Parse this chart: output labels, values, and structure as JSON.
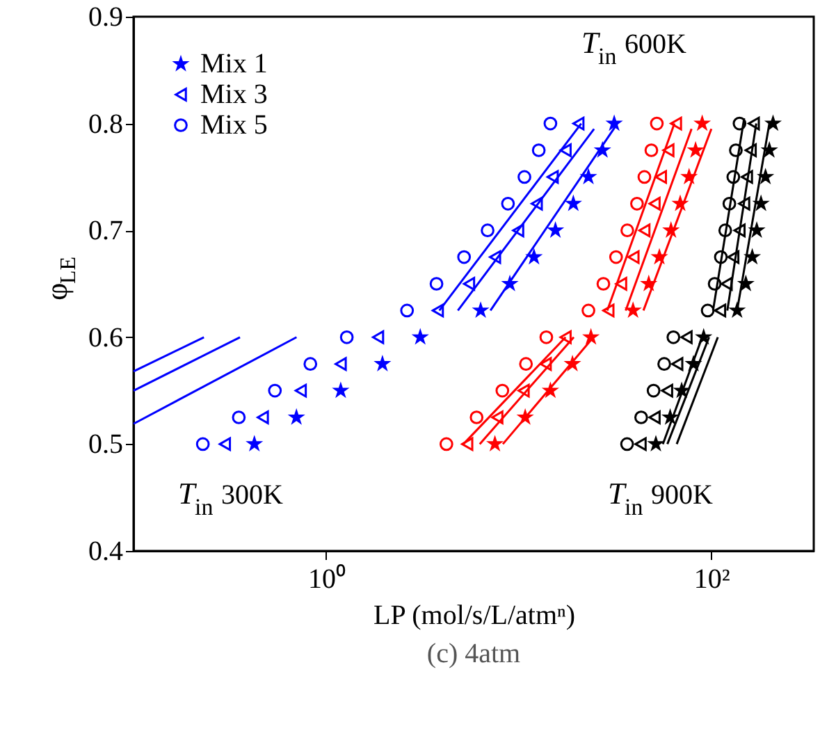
{
  "chart_data": {
    "type": "scatter",
    "title": "(c) 4atm",
    "xlabel": "LP (mol/s/L/atmⁿ)",
    "ylabel": "φ$_{LE}$",
    "xlim": [
      0.1,
      340
    ],
    "ylim": [
      0.4,
      0.9
    ],
    "xticks": [
      {
        "value": 1,
        "label": "10⁰"
      },
      {
        "value": 100,
        "label": "10²"
      }
    ],
    "yticks": [
      0.4,
      0.5,
      0.6,
      0.7,
      0.8,
      0.9
    ],
    "log": "x",
    "grid": false,
    "legend": "top left",
    "annotations": [
      "T$_{in}$ 600K",
      "T$_{in}$ 300K",
      "T$_{in}$ 900K"
    ],
    "series": [
      {
        "name": "Mix 1",
        "marker": "star",
        "color": "#0000ff",
        "x": [
          0.424,
          0.701,
          1.19,
          1.96,
          3.08,
          6.34,
          8.99,
          12.0,
          15.5,
          19.2,
          23.0,
          27.2,
          31.3
        ],
        "values": [
          0.5,
          0.525,
          0.55,
          0.575,
          0.6,
          0.625,
          0.65,
          0.675,
          0.7,
          0.725,
          0.75,
          0.775,
          0.8
        ]
      },
      {
        "name": "Mix 3",
        "marker": "triangle",
        "color": "#0000ff",
        "x": [
          0.298,
          0.469,
          0.738,
          1.19,
          1.86,
          3.8,
          5.52,
          7.53,
          9.93,
          12.4,
          15.0,
          17.5,
          20.4
        ],
        "values": [
          0.5,
          0.525,
          0.55,
          0.575,
          0.6,
          0.625,
          0.65,
          0.675,
          0.7,
          0.725,
          0.75,
          0.775,
          0.8
        ]
      },
      {
        "name": "Mix 5",
        "marker": "circle",
        "color": "#0000ff",
        "x": [
          0.229,
          0.352,
          0.542,
          0.828,
          1.28,
          2.63,
          3.74,
          5.2,
          6.89,
          8.79,
          10.7,
          12.7,
          14.6
        ],
        "values": [
          0.5,
          0.525,
          0.55,
          0.575,
          0.6,
          0.625,
          0.65,
          0.675,
          0.7,
          0.725,
          0.75,
          0.775,
          0.8
        ]
      },
      {
        "type": "scatter",
        "marker": "star",
        "color": "#ff0000",
        "x": [
          7.52,
          10.8,
          14.6,
          19.0,
          23.7,
          39.2,
          47.3,
          53.7,
          61.7,
          68.9,
          76.6,
          82.8,
          89.6
        ],
        "values": [
          0.5,
          0.525,
          0.55,
          0.575,
          0.6,
          0.625,
          0.65,
          0.675,
          0.7,
          0.725,
          0.75,
          0.775,
          0.8
        ]
      },
      {
        "type": "scatter",
        "marker": "triangle",
        "color": "#ff0000",
        "x": [
          5.4,
          7.74,
          10.6,
          13.8,
          17.5,
          29.2,
          34.0,
          39.4,
          44.9,
          50.7,
          54.7,
          59.8,
          65.5
        ],
        "values": [
          0.5,
          0.525,
          0.55,
          0.575,
          0.6,
          0.625,
          0.65,
          0.675,
          0.7,
          0.725,
          0.75,
          0.775,
          0.8
        ]
      },
      {
        "type": "scatter",
        "marker": "circle",
        "color": "#ff0000",
        "x": [
          4.21,
          6.04,
          8.22,
          10.9,
          13.9,
          23.0,
          27.5,
          32.0,
          36.6,
          41.1,
          44.9,
          48.8,
          52.1
        ],
        "values": [
          0.5,
          0.525,
          0.55,
          0.575,
          0.6,
          0.625,
          0.65,
          0.675,
          0.7,
          0.725,
          0.75,
          0.775,
          0.8
        ]
      },
      {
        "type": "scatter",
        "marker": "star",
        "color": "#000000",
        "x": [
          51.5,
          61.1,
          70.1,
          80.7,
          91.2,
          136,
          151,
          163,
          172,
          181,
          191,
          200,
          209
        ],
        "values": [
          0.5,
          0.525,
          0.55,
          0.575,
          0.6,
          0.625,
          0.65,
          0.675,
          0.7,
          0.725,
          0.75,
          0.775,
          0.8
        ]
      },
      {
        "type": "scatter",
        "marker": "triangle",
        "color": "#000000",
        "x": [
          42.9,
          50.7,
          58.9,
          66.5,
          74.3,
          111,
          120,
          130,
          140,
          148,
          153,
          160,
          166
        ],
        "values": [
          0.5,
          0.525,
          0.55,
          0.575,
          0.6,
          0.625,
          0.65,
          0.675,
          0.7,
          0.725,
          0.75,
          0.775,
          0.8
        ]
      },
      {
        "type": "scatter",
        "marker": "circle",
        "color": "#000000",
        "x": [
          36.5,
          43.2,
          50.1,
          56.9,
          63.5,
          95.7,
          104,
          112,
          118,
          124,
          130,
          134,
          140
        ],
        "values": [
          0.5,
          0.525,
          0.55,
          0.575,
          0.6,
          0.625,
          0.65,
          0.675,
          0.7,
          0.725,
          0.75,
          0.775,
          0.8
        ]
      },
      {
        "type": "line",
        "color": "#0000ff",
        "x": [
          0.1,
          0.232
        ],
        "values": [
          0.568,
          0.6
        ]
      },
      {
        "type": "line",
        "color": "#0000ff",
        "x": [
          0.1,
          0.357
        ],
        "values": [
          0.55,
          0.6
        ]
      },
      {
        "type": "line",
        "color": "#0000ff",
        "x": [
          0.1,
          0.702
        ],
        "values": [
          0.519,
          0.6
        ]
      },
      {
        "type": "line",
        "color": "#0000ff",
        "x": [
          3.87,
          21.1
        ],
        "values": [
          0.625,
          0.8
        ]
      },
      {
        "type": "line",
        "color": "#0000ff",
        "x": [
          4.83,
          24.6
        ],
        "values": [
          0.625,
          0.795
        ]
      },
      {
        "type": "line",
        "color": "#0000ff",
        "x": [
          7.13,
          32.5
        ],
        "values": [
          0.625,
          0.8
        ]
      },
      {
        "type": "line",
        "color": "#ff0000",
        "x": [
          28.8,
          64.3
        ],
        "values": [
          0.625,
          0.8
        ]
      },
      {
        "type": "line",
        "color": "#ff0000",
        "x": [
          35.9,
          78.9
        ],
        "values": [
          0.625,
          0.795
        ]
      },
      {
        "type": "line",
        "color": "#ff0000",
        "x": [
          44.4,
          100
        ],
        "values": [
          0.625,
          0.795
        ]
      },
      {
        "type": "line",
        "color": "#ff0000",
        "x": [
          5.16,
          17.5
        ],
        "values": [
          0.5,
          0.6
        ]
      },
      {
        "type": "line",
        "color": "#ff0000",
        "x": [
          6.27,
          19.3
        ],
        "values": [
          0.5,
          0.6
        ]
      },
      {
        "type": "line",
        "color": "#ff0000",
        "x": [
          8.27,
          24.4
        ],
        "values": [
          0.5,
          0.6
        ]
      },
      {
        "type": "line",
        "color": "#000000",
        "x": [
          102,
          148
        ],
        "values": [
          0.625,
          0.805
        ]
      },
      {
        "type": "line",
        "color": "#000000",
        "x": [
          121,
          171
        ],
        "values": [
          0.625,
          0.8
        ]
      },
      {
        "type": "line",
        "color": "#000000",
        "x": [
          136,
          200
        ],
        "values": [
          0.625,
          0.8
        ]
      },
      {
        "type": "line",
        "color": "#000000",
        "x": [
          56.0,
          89.6
        ],
        "values": [
          0.5,
          0.6
        ]
      },
      {
        "type": "line",
        "color": "#000000",
        "x": [
          59.1,
          97.3
        ],
        "values": [
          0.5,
          0.6
        ]
      },
      {
        "type": "line",
        "color": "#000000",
        "x": [
          66.1,
          108
        ],
        "values": [
          0.5,
          0.6
        ]
      }
    ]
  }
}
